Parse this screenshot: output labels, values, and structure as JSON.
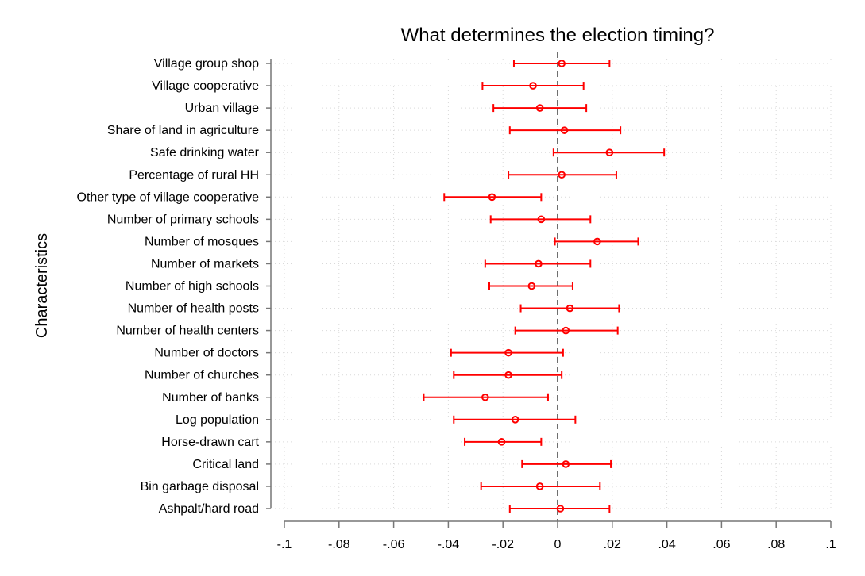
{
  "chart_data": {
    "type": "scatter",
    "subtype": "coefficient-plot-with-confidence-intervals",
    "title": "What determines the election timing?",
    "ylabel": "Characteristics",
    "xlabel": "",
    "xlim": [
      -0.1,
      0.1
    ],
    "x_ticks": [
      -0.1,
      -0.08,
      -0.06,
      -0.04,
      -0.02,
      0,
      0.02,
      0.04,
      0.06,
      0.08,
      0.1
    ],
    "x_tick_labels": [
      "-.1",
      "-.08",
      "-.06",
      "-.04",
      "-.02",
      "0",
      ".02",
      ".04",
      ".06",
      ".08",
      ".1"
    ],
    "reference_line": 0,
    "grid": "dotted vertical and horizontal",
    "marker_color": "#ff0000",
    "reference_line_color": "#6e6e6e",
    "categories": [
      "Village group shop",
      "Village cooperative",
      "Urban village",
      "Share of land in agriculture",
      "Safe drinking water",
      "Percentage of rural HH",
      "Other type of village cooperative",
      "Number of primary schools",
      "Number of mosques",
      "Number of markets",
      "Number of high schools",
      "Number of health posts",
      "Number of health centers",
      "Number of doctors",
      "Number of churches",
      "Number of banks",
      "Log population",
      "Horse-drawn cart",
      "Critical land",
      "Bin garbage disposal",
      "Ashpalt/hard road"
    ],
    "estimates": [
      0.0015,
      -0.009,
      -0.0065,
      0.0025,
      0.019,
      0.0015,
      -0.024,
      -0.006,
      0.0145,
      -0.007,
      -0.0095,
      0.0045,
      0.003,
      -0.018,
      -0.018,
      -0.0265,
      -0.0155,
      -0.0205,
      0.003,
      -0.0065,
      0.001
    ],
    "ci_lower": [
      -0.016,
      -0.0275,
      -0.0235,
      -0.0175,
      -0.0015,
      -0.018,
      -0.0415,
      -0.0245,
      -0.001,
      -0.0265,
      -0.025,
      -0.0135,
      -0.0155,
      -0.039,
      -0.038,
      -0.049,
      -0.038,
      -0.034,
      -0.013,
      -0.028,
      -0.0175
    ],
    "ci_upper": [
      0.019,
      0.0095,
      0.0105,
      0.023,
      0.039,
      0.0215,
      -0.006,
      0.012,
      0.0295,
      0.012,
      0.0055,
      0.0225,
      0.022,
      0.002,
      0.0015,
      -0.0035,
      0.0065,
      -0.006,
      0.0195,
      0.0155,
      0.019
    ]
  }
}
